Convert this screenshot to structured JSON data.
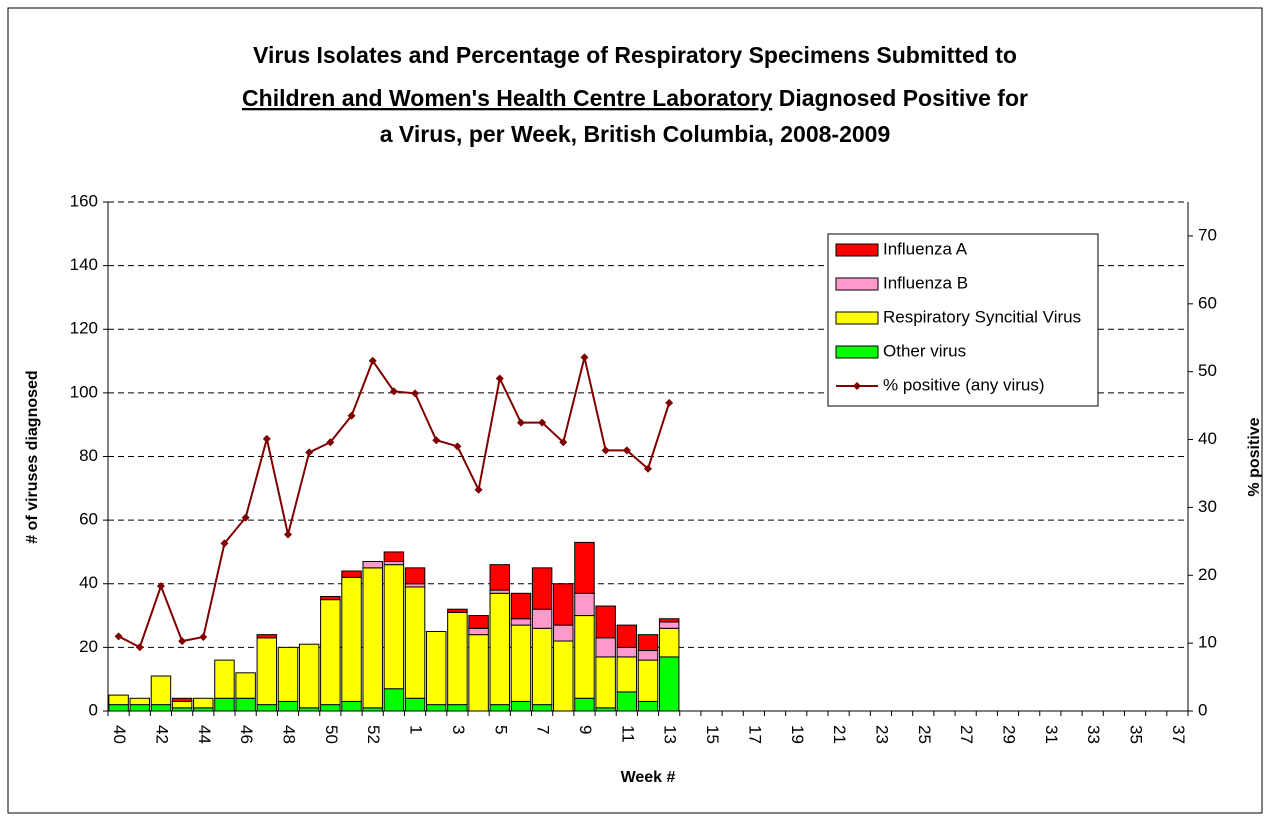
{
  "chart_data": {
    "type": "bar",
    "title": [
      "Virus Isolates and Percentage of Respiratory Specimens Submitted to",
      "Children and Women's Health Centre Laboratory",
      "Diagnosed Positive for",
      "a Virus, per Week, British Columbia, 2008-2009"
    ],
    "y_label": "# of viruses diagnosed",
    "y2_label": "% positive",
    "x_label": "Week #",
    "categories": [
      "40",
      null,
      "42",
      null,
      "44",
      null,
      "46",
      null,
      "48",
      null,
      "50",
      null,
      "52",
      null,
      "1",
      null,
      "3",
      null,
      "5",
      null,
      "7",
      null,
      "9",
      null,
      "11",
      null,
      "13",
      null,
      "15",
      null,
      "17",
      null,
      "19",
      null,
      "21",
      null,
      "23",
      null,
      "25",
      null,
      "27",
      null,
      "29",
      null,
      "31",
      null,
      "33",
      null,
      "35",
      null,
      "37"
    ],
    "series": [
      {
        "name": "Influenza A",
        "color": "#ff0000",
        "values": [
          0,
          0,
          0,
          1,
          0,
          0,
          0,
          1,
          0,
          0,
          1,
          2,
          0,
          3,
          5,
          0,
          1,
          4,
          8,
          8,
          13,
          13,
          16,
          10,
          7,
          5,
          1,
          null,
          null,
          null,
          null,
          null,
          null,
          null,
          null,
          null,
          null,
          null,
          null,
          null,
          null,
          null,
          null,
          null,
          null,
          null,
          null,
          null,
          null,
          null,
          null
        ]
      },
      {
        "name": "Influenza B",
        "color": "#ff99cc",
        "values": [
          0,
          0,
          0,
          0,
          0,
          0,
          0,
          0,
          0,
          0,
          0,
          0,
          2,
          1,
          1,
          0,
          0,
          2,
          1,
          2,
          6,
          5,
          7,
          6,
          3,
          3,
          2,
          null,
          null,
          null,
          null,
          null,
          null,
          null,
          null,
          null,
          null,
          null,
          null,
          null,
          null,
          null,
          null,
          null,
          null,
          null,
          null,
          null,
          null,
          null,
          null
        ]
      },
      {
        "name": "Respiratory Syncitial Virus",
        "color": "#ffff00",
        "values": [
          3,
          2,
          9,
          2,
          3,
          12,
          8,
          21,
          17,
          20,
          33,
          39,
          44,
          39,
          35,
          23,
          29,
          24,
          35,
          24,
          24,
          22,
          26,
          16,
          11,
          13,
          9,
          null,
          null,
          null,
          null,
          null,
          null,
          null,
          null,
          null,
          null,
          null,
          null,
          null,
          null,
          null,
          null,
          null,
          null,
          null,
          null,
          null,
          null,
          null,
          null
        ]
      },
      {
        "name": "Other virus",
        "color": "#00ff00",
        "values": [
          2,
          2,
          2,
          1,
          1,
          4,
          4,
          2,
          3,
          1,
          2,
          3,
          1,
          7,
          4,
          2,
          2,
          0,
          2,
          3,
          2,
          0,
          4,
          1,
          6,
          3,
          17,
          null,
          null,
          null,
          null,
          null,
          null,
          null,
          null,
          null,
          null,
          null,
          null,
          null,
          null,
          null,
          null,
          null,
          null,
          null,
          null,
          null,
          null,
          null,
          null
        ]
      },
      {
        "name": "% positive (any virus)",
        "color": "#800000",
        "axis": "y2",
        "type": "line",
        "values": [
          11,
          9.4,
          18.4,
          10.3,
          10.9,
          24.7,
          28.5,
          40.1,
          26,
          38.1,
          39.6,
          43.5,
          51.6,
          47.1,
          46.8,
          39.9,
          39,
          32.6,
          49,
          42.5,
          42.5,
          39.6,
          52.1,
          38.4,
          38.4,
          35.7,
          45.4,
          null,
          null,
          null,
          null,
          null,
          null,
          null,
          null,
          null,
          null,
          null,
          null,
          null,
          null,
          null,
          null,
          null,
          null,
          null,
          null,
          null,
          null,
          null,
          null
        ]
      }
    ],
    "ylim": [
      0,
      160
    ],
    "yticks": [
      0,
      20,
      40,
      60,
      80,
      100,
      120,
      140,
      160
    ],
    "y2lim": [
      0,
      75
    ],
    "y2ticks": [
      0,
      10,
      20,
      30,
      40,
      50,
      60,
      70
    ],
    "grid": true,
    "stacked": true
  }
}
